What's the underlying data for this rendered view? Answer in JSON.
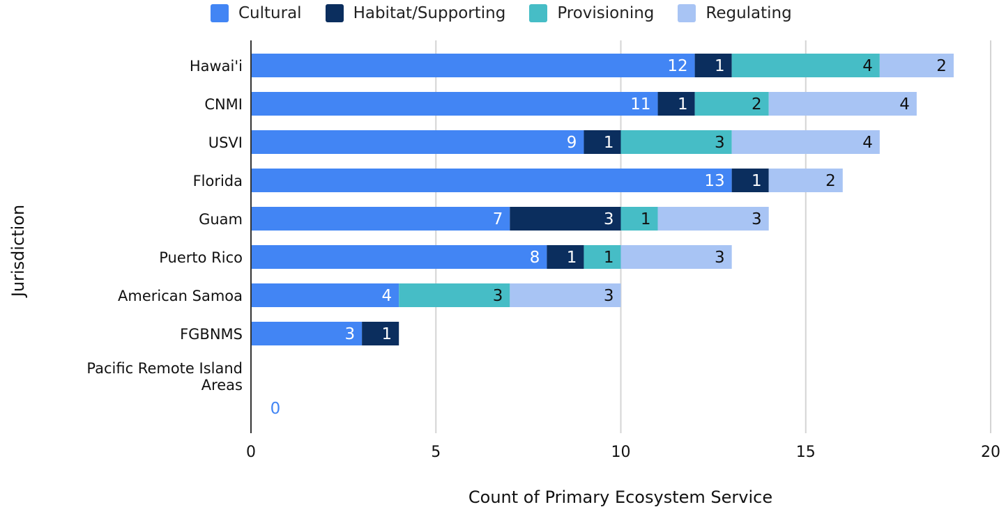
{
  "chart_data": {
    "type": "bar",
    "orientation": "horizontal",
    "stacked": true,
    "categories": [
      "Hawai'i",
      "CNMI",
      "USVI",
      "Florida",
      "Guam",
      "Puerto Rico",
      "American Samoa",
      "FGBNMS",
      "Pacific Remote Island Areas"
    ],
    "series": [
      {
        "name": "Cultural",
        "color": "#4285f4",
        "label_color": "#ffffff",
        "values": [
          12,
          11,
          9,
          13,
          7,
          8,
          4,
          3,
          0
        ]
      },
      {
        "name": "Habitat/Supporting",
        "color": "#0b2e5e",
        "label_color": "#ffffff",
        "values": [
          1,
          1,
          1,
          1,
          3,
          1,
          0,
          1,
          0
        ]
      },
      {
        "name": "Provisioning",
        "color": "#46bdc6",
        "label_color": "#111111",
        "values": [
          4,
          2,
          3,
          0,
          1,
          1,
          3,
          0,
          0
        ]
      },
      {
        "name": "Regulating",
        "color": "#a8c4f4",
        "label_color": "#111111",
        "values": [
          2,
          4,
          4,
          2,
          3,
          3,
          3,
          0,
          0
        ]
      }
    ],
    "zero_label": "0",
    "zero_label_color": "#4285f4",
    "xlabel": "Count of Primary Ecosystem Service",
    "ylabel": "Jurisdiction",
    "xlim": [
      0,
      20
    ],
    "xticks": [
      "0",
      "5",
      "10",
      "15",
      "20"
    ],
    "grid": true,
    "legend_position": "top"
  }
}
